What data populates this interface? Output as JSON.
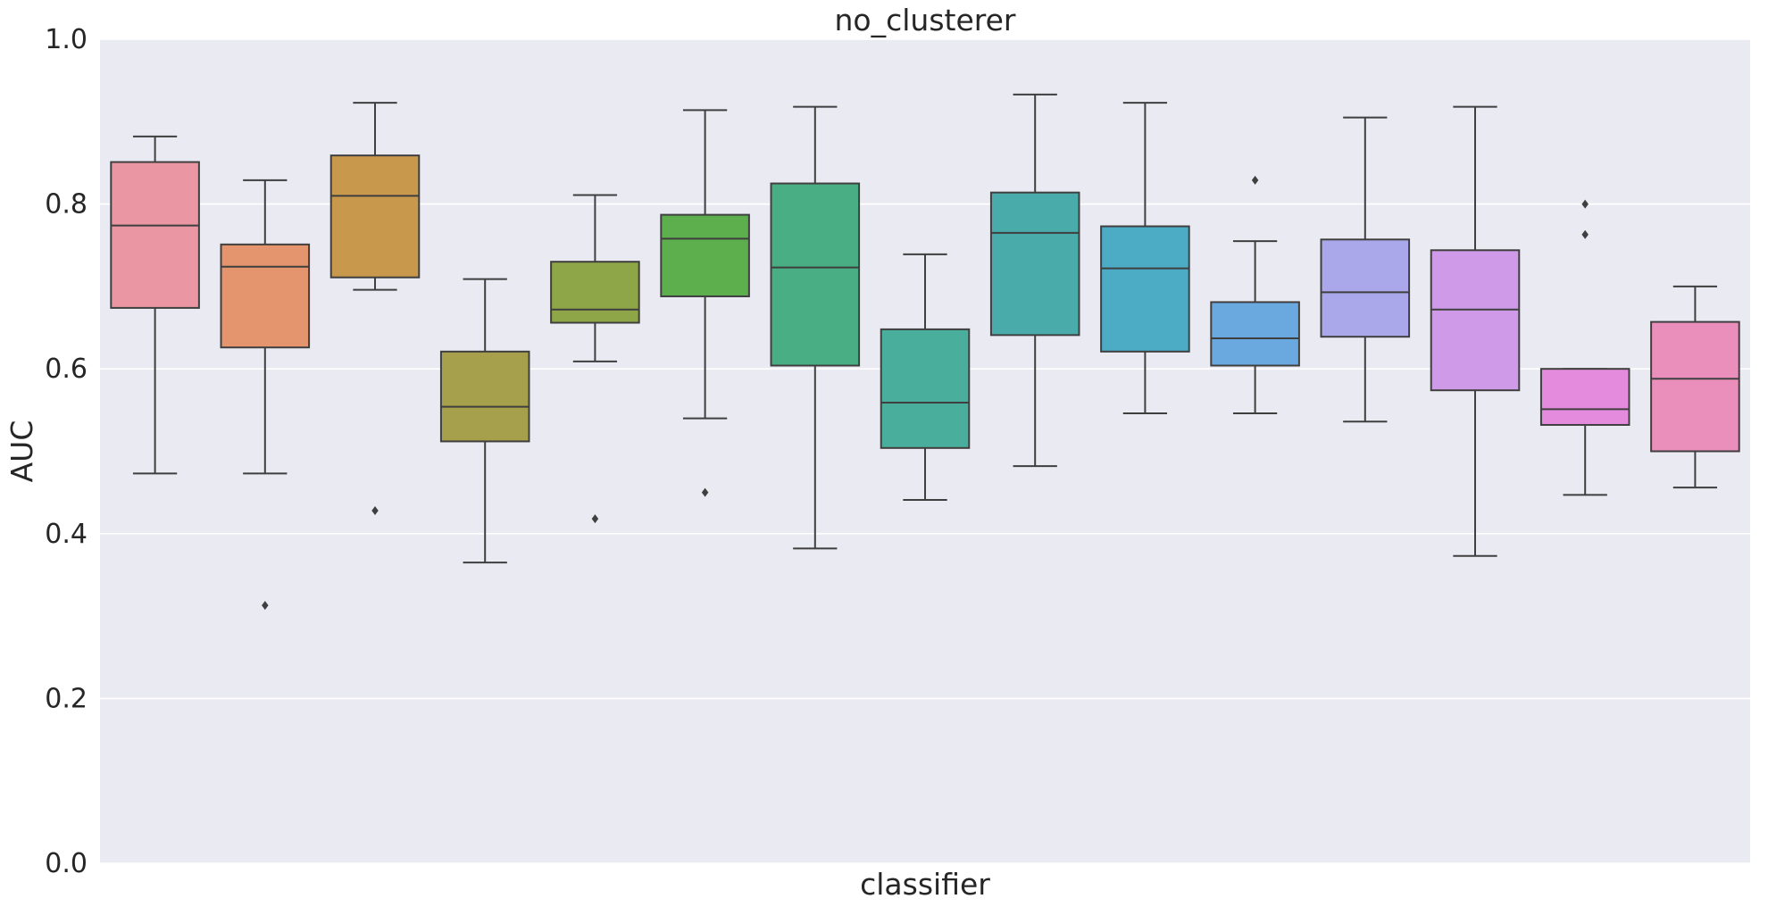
{
  "chart_data": {
    "type": "box",
    "title": "no_clusterer",
    "xlabel": "classifier",
    "ylabel": "AUC",
    "ylim": [
      0,
      1
    ],
    "yticks": [
      0.0,
      0.2,
      0.4,
      0.6,
      0.8,
      1.0
    ],
    "ytick_labels": [
      "0.0",
      "0.2",
      "0.4",
      "0.6",
      "0.8",
      "1.0"
    ],
    "grid": true,
    "background": "#eaeaf2",
    "series": [
      {
        "color": "#ea96a3",
        "whisker_low": 0.473,
        "q1": 0.674,
        "median": 0.774,
        "q3": 0.851,
        "whisker_high": 0.882,
        "outliers": []
      },
      {
        "color": "#e5956d",
        "whisker_low": 0.473,
        "q1": 0.626,
        "median": 0.724,
        "q3": 0.751,
        "whisker_high": 0.829,
        "outliers": [
          0.313
        ]
      },
      {
        "color": "#c8984c",
        "whisker_low": 0.696,
        "q1": 0.711,
        "median": 0.81,
        "q3": 0.859,
        "whisker_high": 0.923,
        "outliers": [
          0.428
        ]
      },
      {
        "color": "#a6a04d",
        "whisker_low": 0.365,
        "q1": 0.512,
        "median": 0.554,
        "q3": 0.621,
        "whisker_high": 0.709,
        "outliers": []
      },
      {
        "color": "#8ea548",
        "whisker_low": 0.609,
        "q1": 0.656,
        "median": 0.672,
        "q3": 0.73,
        "whisker_high": 0.811,
        "outliers": [
          0.418
        ]
      },
      {
        "color": "#5dae4c",
        "whisker_low": 0.54,
        "q1": 0.688,
        "median": 0.758,
        "q3": 0.787,
        "whisker_high": 0.914,
        "outliers": [
          0.45
        ]
      },
      {
        "color": "#49ae83",
        "whisker_low": 0.382,
        "q1": 0.604,
        "median": 0.723,
        "q3": 0.825,
        "whisker_high": 0.918,
        "outliers": []
      },
      {
        "color": "#4aae9c",
        "whisker_low": 0.441,
        "q1": 0.504,
        "median": 0.559,
        "q3": 0.648,
        "whisker_high": 0.739,
        "outliers": []
      },
      {
        "color": "#4aabab",
        "whisker_low": 0.482,
        "q1": 0.641,
        "median": 0.765,
        "q3": 0.814,
        "whisker_high": 0.933,
        "outliers": []
      },
      {
        "color": "#4cacc6",
        "whisker_low": 0.546,
        "q1": 0.621,
        "median": 0.722,
        "q3": 0.773,
        "whisker_high": 0.923,
        "outliers": []
      },
      {
        "color": "#6aa9e0",
        "whisker_low": 0.546,
        "q1": 0.604,
        "median": 0.637,
        "q3": 0.681,
        "whisker_high": 0.755,
        "outliers": [
          0.829
        ]
      },
      {
        "color": "#aaa8ea",
        "whisker_low": 0.536,
        "q1": 0.639,
        "median": 0.693,
        "q3": 0.757,
        "whisker_high": 0.905,
        "outliers": []
      },
      {
        "color": "#cf9be8",
        "whisker_low": 0.373,
        "q1": 0.574,
        "median": 0.672,
        "q3": 0.744,
        "whisker_high": 0.918,
        "outliers": []
      },
      {
        "color": "#e58bdd",
        "whisker_low": 0.447,
        "q1": 0.532,
        "median": 0.551,
        "q3": 0.6,
        "whisker_high": 0.6,
        "outliers": [
          0.763,
          0.8
        ]
      },
      {
        "color": "#ea8fbc",
        "whisker_low": 0.456,
        "q1": 0.5,
        "median": 0.588,
        "q3": 0.657,
        "whisker_high": 0.7,
        "outliers": []
      }
    ]
  }
}
